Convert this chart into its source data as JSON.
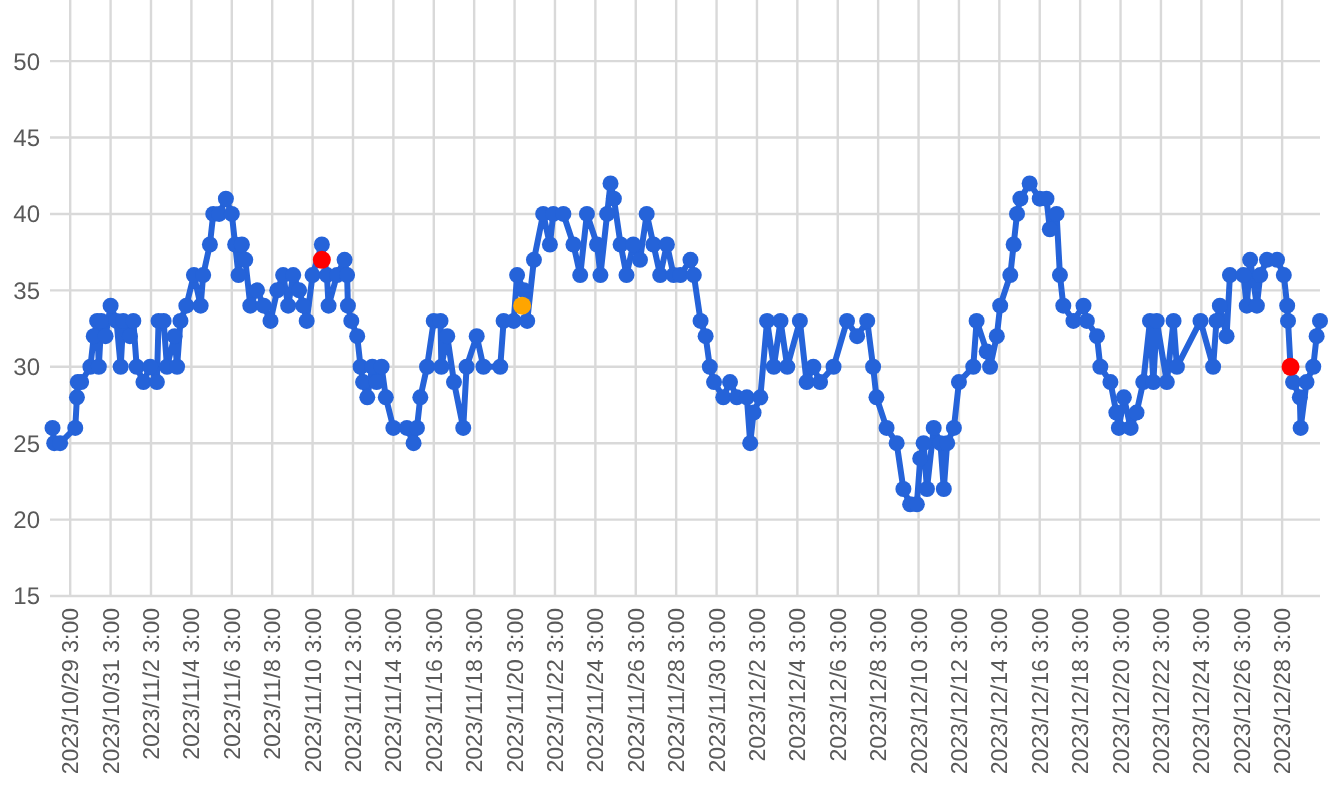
{
  "chart_data": {
    "type": "line",
    "grid": true,
    "marker": "circle",
    "xlim": [
      "2023-10-28T03:00",
      "2023-12-30T00:00"
    ],
    "ylim": [
      15,
      54
    ],
    "yticks": [
      15,
      20,
      25,
      30,
      35,
      40,
      45,
      50
    ],
    "xticks": [
      {
        "value": "2023-10-29T03:00",
        "label": "2023/10/29 3:00"
      },
      {
        "value": "2023-10-31T03:00",
        "label": "2023/10/31 3:00"
      },
      {
        "value": "2023-11-02T03:00",
        "label": "2023/11/2 3:00"
      },
      {
        "value": "2023-11-04T03:00",
        "label": "2023/11/4 3:00"
      },
      {
        "value": "2023-11-06T03:00",
        "label": "2023/11/6 3:00"
      },
      {
        "value": "2023-11-08T03:00",
        "label": "2023/11/8 3:00"
      },
      {
        "value": "2023-11-10T03:00",
        "label": "2023/11/10 3:00"
      },
      {
        "value": "2023-11-12T03:00",
        "label": "2023/11/12 3:00"
      },
      {
        "value": "2023-11-14T03:00",
        "label": "2023/11/14 3:00"
      },
      {
        "value": "2023-11-16T03:00",
        "label": "2023/11/16 3:00"
      },
      {
        "value": "2023-11-18T03:00",
        "label": "2023/11/18 3:00"
      },
      {
        "value": "2023-11-20T03:00",
        "label": "2023/11/20 3:00"
      },
      {
        "value": "2023-11-22T03:00",
        "label": "2023/11/22 3:00"
      },
      {
        "value": "2023-11-24T03:00",
        "label": "2023/11/24 3:00"
      },
      {
        "value": "2023-11-26T03:00",
        "label": "2023/11/26 3:00"
      },
      {
        "value": "2023-11-28T03:00",
        "label": "2023/11/28 3:00"
      },
      {
        "value": "2023-11-30T03:00",
        "label": "2023/11/30 3:00"
      },
      {
        "value": "2023-12-02T03:00",
        "label": "2023/12/2 3:00"
      },
      {
        "value": "2023-12-04T03:00",
        "label": "2023/12/4 3:00"
      },
      {
        "value": "2023-12-06T03:00",
        "label": "2023/12/6 3:00"
      },
      {
        "value": "2023-12-08T03:00",
        "label": "2023/12/8 3:00"
      },
      {
        "value": "2023-12-10T03:00",
        "label": "2023/12/10 3:00"
      },
      {
        "value": "2023-12-12T03:00",
        "label": "2023/12/12 3:00"
      },
      {
        "value": "2023-12-14T03:00",
        "label": "2023/12/14 3:00"
      },
      {
        "value": "2023-12-16T03:00",
        "label": "2023/12/16 3:00"
      },
      {
        "value": "2023-12-18T03:00",
        "label": "2023/12/18 3:00"
      },
      {
        "value": "2023-12-20T03:00",
        "label": "2023/12/20 3:00"
      },
      {
        "value": "2023-12-22T03:00",
        "label": "2023/12/22 3:00"
      },
      {
        "value": "2023-12-24T03:00",
        "label": "2023/12/24 3:00"
      },
      {
        "value": "2023-12-26T03:00",
        "label": "2023/12/26 3:00"
      },
      {
        "value": "2023-12-28T03:00",
        "label": "2023/12/28 3:00"
      }
    ],
    "series": [
      {
        "color": "#2563d9",
        "x": [
          "2023-10-28T06:00",
          "2023-10-28T08:00",
          "2023-10-28T15:00",
          "2023-10-29T09:00",
          "2023-10-29T11:00",
          "2023-10-29T12:00",
          "2023-10-29T16:00",
          "2023-10-30T03:00",
          "2023-10-30T07:00",
          "2023-10-30T11:00",
          "2023-10-30T13:00",
          "2023-10-30T16:00",
          "2023-10-30T21:00",
          "2023-10-31T03:00",
          "2023-10-31T10:00",
          "2023-10-31T15:00",
          "2023-10-31T18:00",
          "2023-11-01T02:00",
          "2023-11-01T06:00",
          "2023-11-01T10:00",
          "2023-11-01T18:00",
          "2023-11-02T02:00",
          "2023-11-02T10:00",
          "2023-11-02T12:00",
          "2023-11-02T18:00",
          "2023-11-02T22:00",
          "2023-11-03T07:00",
          "2023-11-03T10:00",
          "2023-11-03T14:00",
          "2023-11-03T21:00",
          "2023-11-04T06:00",
          "2023-11-04T14:00",
          "2023-11-04T17:00",
          "2023-11-05T01:00",
          "2023-11-05T05:00",
          "2023-11-05T12:00",
          "2023-11-05T20:00",
          "2023-11-06T03:00",
          "2023-11-06T07:00",
          "2023-11-06T11:00",
          "2023-11-06T15:00",
          "2023-11-06T19:00",
          "2023-11-07T01:00",
          "2023-11-07T09:00",
          "2023-11-07T17:00",
          "2023-11-08T01:00",
          "2023-11-08T09:00",
          "2023-11-08T16:00",
          "2023-11-08T22:00",
          "2023-11-09T04:00",
          "2023-11-09T11:00",
          "2023-11-09T16:00",
          "2023-11-09T20:00",
          "2023-11-10T03:00",
          "2023-11-10T14:00",
          "2023-11-10T20:00",
          "2023-11-10T22:00",
          "2023-11-11T08:00",
          "2023-11-11T17:00",
          "2023-11-11T20:00",
          "2023-11-11T21:00",
          "2023-11-12T01:00",
          "2023-11-12T08:00",
          "2023-11-12T12:00",
          "2023-11-12T15:00",
          "2023-11-12T20:00",
          "2023-11-13T02:00",
          "2023-11-13T07:00",
          "2023-11-13T13:00",
          "2023-11-13T18:00",
          "2023-11-14T03:00",
          "2023-11-14T19:00",
          "2023-11-15T03:00",
          "2023-11-15T07:00",
          "2023-11-15T11:00",
          "2023-11-15T19:00",
          "2023-11-16T03:00",
          "2023-11-16T11:00",
          "2023-11-16T12:00",
          "2023-11-16T19:00",
          "2023-11-17T03:00",
          "2023-11-17T14:00",
          "2023-11-17T18:00",
          "2023-11-18T06:00",
          "2023-11-18T14:00",
          "2023-11-19T10:00",
          "2023-11-19T14:00",
          "2023-11-20T02:00",
          "2023-11-20T06:00",
          "2023-11-20T14:00",
          "2023-11-20T18:00",
          "2023-11-21T02:00",
          "2023-11-21T13:00",
          "2023-11-21T21:00",
          "2023-11-22T01:00",
          "2023-11-22T13:00",
          "2023-11-23T01:00",
          "2023-11-23T09:00",
          "2023-11-23T17:00",
          "2023-11-24T05:00",
          "2023-11-24T09:00",
          "2023-11-24T17:00",
          "2023-11-24T21:00",
          "2023-11-25T01:00",
          "2023-11-25T09:00",
          "2023-11-25T16:00",
          "2023-11-26T00:00",
          "2023-11-26T08:00",
          "2023-11-26T16:00",
          "2023-11-27T00:00",
          "2023-11-27T08:00",
          "2023-11-27T16:00",
          "2023-11-28T00:00",
          "2023-11-28T08:00",
          "2023-11-28T20:00",
          "2023-11-29T00:00",
          "2023-11-29T08:00",
          "2023-11-29T14:00",
          "2023-11-29T19:00",
          "2023-11-30T00:00",
          "2023-11-30T11:00",
          "2023-11-30T19:00",
          "2023-12-01T03:00",
          "2023-12-01T15:00",
          "2023-12-01T19:00",
          "2023-12-01T23:00",
          "2023-12-02T07:00",
          "2023-12-02T15:00",
          "2023-12-02T23:00",
          "2023-12-03T07:00",
          "2023-12-03T15:00",
          "2023-12-04T06:00",
          "2023-12-04T14:00",
          "2023-12-04T22:00",
          "2023-12-05T06:00",
          "2023-12-05T22:00",
          "2023-12-06T14:00",
          "2023-12-07T02:00",
          "2023-12-07T14:00",
          "2023-12-07T21:00",
          "2023-12-08T01:00",
          "2023-12-08T13:00",
          "2023-12-09T01:00",
          "2023-12-09T09:00",
          "2023-12-09T17:00",
          "2023-12-10T01:00",
          "2023-12-10T05:00",
          "2023-12-10T09:00",
          "2023-12-10T13:00",
          "2023-12-10T21:00",
          "2023-12-11T05:00",
          "2023-12-11T09:00",
          "2023-12-11T13:00",
          "2023-12-11T21:00",
          "2023-12-12T03:00",
          "2023-12-12T20:00",
          "2023-12-13T00:00",
          "2023-12-13T12:00",
          "2023-12-13T16:00",
          "2023-12-14T00:00",
          "2023-12-14T04:00",
          "2023-12-14T16:00",
          "2023-12-14T20:00",
          "2023-12-15T00:00",
          "2023-12-15T04:00",
          "2023-12-15T15:00",
          "2023-12-16T03:00",
          "2023-12-16T11:00",
          "2023-12-16T15:00",
          "2023-12-16T23:00",
          "2023-12-17T03:00",
          "2023-12-17T07:00",
          "2023-12-17T19:00",
          "2023-12-18T07:00",
          "2023-12-18T11:00",
          "2023-12-18T23:00",
          "2023-12-19T03:00",
          "2023-12-19T15:00",
          "2023-12-19T22:00",
          "2023-12-20T01:00",
          "2023-12-20T07:00",
          "2023-12-20T15:00",
          "2023-12-20T22:00",
          "2023-12-21T06:00",
          "2023-12-21T14:00",
          "2023-12-21T18:00",
          "2023-12-21T22:00",
          "2023-12-22T10:00",
          "2023-12-22T18:00",
          "2023-12-22T22:00",
          "2023-12-24T02:00",
          "2023-12-24T17:00",
          "2023-12-24T21:00",
          "2023-12-25T01:00",
          "2023-12-25T09:00",
          "2023-12-25T13:00",
          "2023-12-26T05:00",
          "2023-12-26T09:00",
          "2023-12-26T13:00",
          "2023-12-26T21:00",
          "2023-12-27T01:00",
          "2023-12-27T09:00",
          "2023-12-27T21:00",
          "2023-12-28T05:00",
          "2023-12-28T09:00",
          "2023-12-28T10:00",
          "2023-12-28T13:00",
          "2023-12-28T16:00",
          "2023-12-29T00:00",
          "2023-12-29T01:00",
          "2023-12-29T08:00",
          "2023-12-29T16:00",
          "2023-12-29T20:00",
          "2023-12-30T00:00"
        ],
        "values": [
          26,
          25,
          25,
          26,
          28,
          29,
          29,
          30,
          32,
          33,
          30,
          33,
          32,
          34,
          33,
          30,
          33,
          32,
          33,
          30,
          29,
          30,
          29,
          33,
          33,
          30,
          32,
          30,
          33,
          34,
          36,
          34,
          36,
          38,
          40,
          40,
          41,
          40,
          38,
          36,
          38,
          37,
          34,
          35,
          34,
          33,
          35,
          36,
          34,
          36,
          35,
          34,
          33,
          36,
          38,
          36,
          34,
          36,
          37,
          36,
          34,
          33,
          32,
          30,
          29,
          28,
          30,
          29,
          30,
          28,
          26,
          26,
          25,
          26,
          28,
          30,
          33,
          33,
          30,
          32,
          29,
          26,
          30,
          32,
          30,
          30,
          33,
          33,
          36,
          35,
          33,
          37,
          40,
          38,
          40,
          40,
          38,
          36,
          40,
          38,
          36,
          40,
          42,
          41,
          38,
          36,
          38,
          37,
          40,
          38,
          36,
          38,
          36,
          36,
          37,
          36,
          33,
          32,
          30,
          29,
          28,
          29,
          28,
          28,
          25,
          27,
          28,
          33,
          30,
          33,
          30,
          33,
          29,
          30,
          29,
          30,
          33,
          32,
          33,
          30,
          28,
          26,
          25,
          22,
          21,
          21,
          24,
          25,
          22,
          26,
          25,
          22,
          25,
          26,
          29,
          30,
          33,
          31,
          30,
          32,
          34,
          36,
          38,
          40,
          41,
          42,
          41,
          41,
          39,
          40,
          36,
          34,
          33,
          34,
          33,
          32,
          30,
          29,
          27,
          26,
          28,
          26,
          27,
          29,
          33,
          29,
          33,
          29,
          33,
          30,
          33,
          30,
          33,
          34,
          32,
          36,
          36,
          34,
          37,
          34,
          36,
          37,
          37,
          36,
          34,
          33,
          30,
          29,
          28,
          26,
          29,
          30,
          32,
          33
        ]
      },
      {
        "type": "scatter",
        "x": [
          "2023-11-10T14:00",
          "2023-11-20T12:00",
          "2023-12-28T13:00"
        ],
        "values": [
          37,
          34,
          30
        ],
        "colors": [
          "#ff0000",
          "#ffa500",
          "#ff0000"
        ]
      }
    ]
  }
}
